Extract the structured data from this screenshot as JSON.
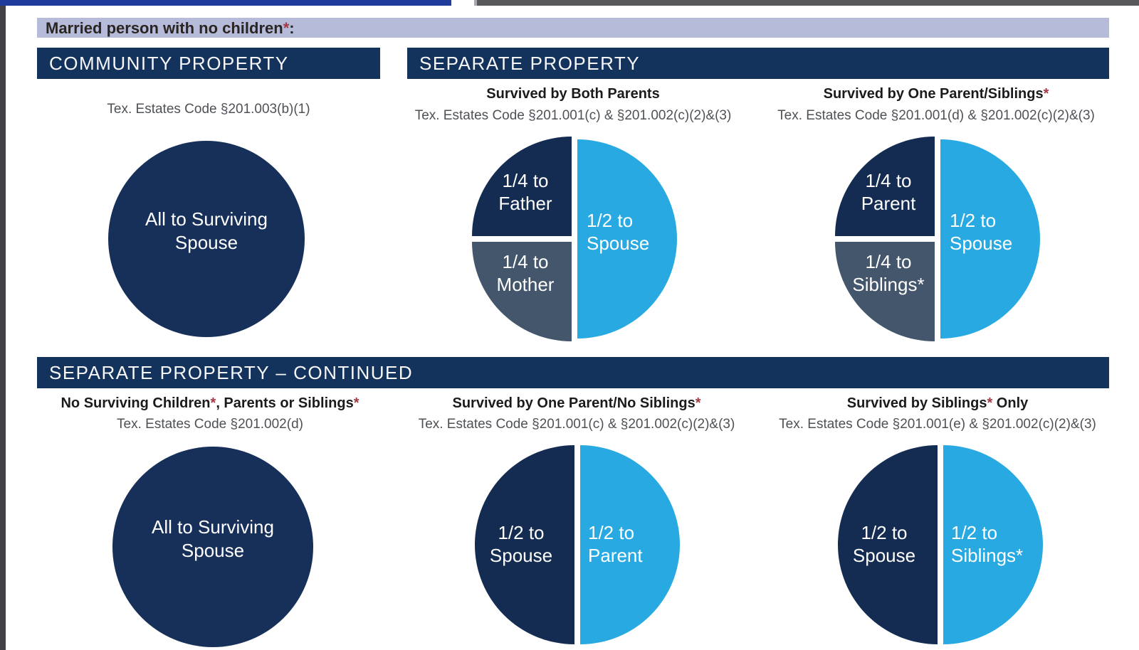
{
  "colors": {
    "header_bar_navy": "#13325C",
    "circle_navy": "#17305A",
    "slice_navy": "#142C52",
    "slice_light_blue": "#29A9E1",
    "slice_slate": "#44566C",
    "banner_lavender": "#B5BBD8",
    "asterisk_red": "#A43843",
    "top_edge_blue": "#1F3C9B",
    "top_edge_gray": "#58595B"
  },
  "banner": {
    "segments": [
      {
        "t": "Married person with no children"
      },
      {
        "t": "*",
        "red": true
      },
      {
        "t": ":"
      }
    ]
  },
  "section1": {
    "bar_community": "COMMUNITY PROPERTY",
    "bar_separate": "SEPARATE PROPERTY",
    "col1": {
      "code": "Tex. Estates Code §201.003(b)(1)",
      "circle_label": [
        "All to Surviving",
        "Spouse"
      ]
    },
    "col2": {
      "heading": [
        {
          "t": "Survived by Both Parents"
        }
      ],
      "code": "Tex. Estates Code §201.001(c) & §201.002(c)(2)&(3)",
      "labels": {
        "top_quarter": [
          "1/4 to",
          "Father"
        ],
        "bottom_quarter": [
          "1/4 to",
          "Mother"
        ],
        "right_half": [
          "1/2 to",
          "Spouse"
        ]
      }
    },
    "col3": {
      "heading": [
        {
          "t": "Survived by One Parent/Siblings"
        },
        {
          "t": "*",
          "red": true
        }
      ],
      "code": "Tex. Estates Code §201.001(d) & §201.002(c)(2)&(3)",
      "labels": {
        "top_quarter": [
          "1/4 to",
          "Parent"
        ],
        "bottom_quarter": [
          "1/4 to",
          "Siblings*"
        ],
        "right_half": [
          "1/2 to",
          "Spouse"
        ]
      }
    }
  },
  "section2": {
    "bar": "SEPARATE PROPERTY – CONTINUED",
    "col1": {
      "heading": [
        {
          "t": "No Surviving Children"
        },
        {
          "t": "*",
          "red": true
        },
        {
          "t": ", Parents or Siblings"
        },
        {
          "t": "*",
          "red": true
        }
      ],
      "code": "Tex. Estates Code §201.002(d)",
      "circle_label": [
        "All to Surviving",
        "Spouse"
      ]
    },
    "col2": {
      "heading": [
        {
          "t": "Survived by One Parent/No Siblings"
        },
        {
          "t": "*",
          "red": true
        }
      ],
      "code": "Tex. Estates Code §201.001(c) & §201.002(c)(2)&(3)",
      "labels": {
        "left_half": [
          "1/2 to",
          "Spouse"
        ],
        "right_half": [
          "1/2 to",
          "Parent"
        ]
      }
    },
    "col3": {
      "heading": [
        {
          "t": "Survived by Siblings"
        },
        {
          "t": "*",
          "red": true
        },
        {
          "t": " Only"
        }
      ],
      "code": "Tex. Estates Code §201.001(e) & §201.002(c)(2)&(3)",
      "labels": {
        "left_half": [
          "1/2 to",
          "Spouse"
        ],
        "right_half": [
          "1/2 to",
          "Siblings*"
        ]
      }
    }
  },
  "chart_data": [
    {
      "type": "pie",
      "title": "Community Property — Married person with no children",
      "labels": [
        "All to Surviving Spouse"
      ],
      "values": [
        1.0
      ],
      "colors": [
        "#17305A"
      ]
    },
    {
      "type": "pie",
      "title": "Separate Property — Survived by Both Parents",
      "labels": [
        "1/2 to Spouse",
        "1/4 to Father",
        "1/4 to Mother"
      ],
      "values": [
        0.5,
        0.25,
        0.25
      ],
      "colors": [
        "#29A9E1",
        "#142C52",
        "#44566C"
      ]
    },
    {
      "type": "pie",
      "title": "Separate Property — Survived by One Parent/Siblings*",
      "labels": [
        "1/2 to Spouse",
        "1/4 to Parent",
        "1/4 to Siblings*"
      ],
      "values": [
        0.5,
        0.25,
        0.25
      ],
      "colors": [
        "#29A9E1",
        "#142C52",
        "#44566C"
      ]
    },
    {
      "type": "pie",
      "title": "Separate Property — No Surviving Children*, Parents or Siblings*",
      "labels": [
        "All to Surviving Spouse"
      ],
      "values": [
        1.0
      ],
      "colors": [
        "#17305A"
      ]
    },
    {
      "type": "pie",
      "title": "Separate Property — Survived by One Parent/No Siblings*",
      "labels": [
        "1/2 to Spouse",
        "1/2 to Parent"
      ],
      "values": [
        0.5,
        0.5
      ],
      "colors": [
        "#142C52",
        "#29A9E1"
      ]
    },
    {
      "type": "pie",
      "title": "Separate Property — Survived by Siblings* Only",
      "labels": [
        "1/2 to Spouse",
        "1/2 to Siblings*"
      ],
      "values": [
        0.5,
        0.5
      ],
      "colors": [
        "#142C52",
        "#29A9E1"
      ]
    }
  ]
}
